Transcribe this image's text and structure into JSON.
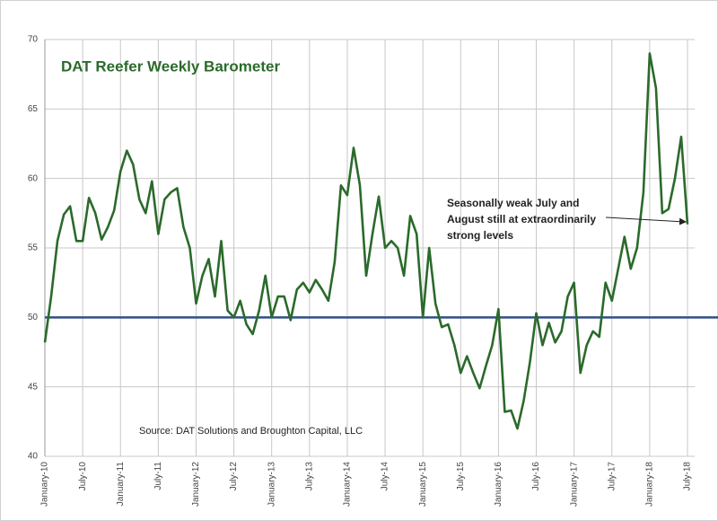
{
  "chart_data": {
    "type": "line",
    "title": "DAT Reefer Weekly Barometer",
    "source": "Source: DAT Solutions and Broughton Capital, LLC",
    "annotation": [
      "Seasonally weak July and",
      "August still at extraordinarily",
      "strong levels"
    ],
    "categories": [
      "January-10",
      null,
      null,
      null,
      null,
      null,
      "July-10",
      null,
      null,
      null,
      null,
      null,
      "January-11",
      null,
      null,
      null,
      null,
      null,
      "July-11",
      null,
      null,
      null,
      null,
      null,
      "January-12",
      null,
      null,
      null,
      null,
      null,
      "July-12",
      null,
      null,
      null,
      null,
      null,
      "January-13",
      null,
      null,
      null,
      null,
      null,
      "July-13",
      null,
      null,
      null,
      null,
      null,
      "January-14",
      null,
      null,
      null,
      null,
      null,
      "July-14",
      null,
      null,
      null,
      null,
      null,
      "January-15",
      null,
      null,
      null,
      null,
      null,
      "July-15",
      null,
      null,
      null,
      null,
      null,
      "January-16",
      null,
      null,
      null,
      null,
      null,
      "July-16",
      null,
      null,
      null,
      null,
      null,
      "January-17",
      null,
      null,
      null,
      null,
      null,
      "July-17",
      null,
      null,
      null,
      null,
      null,
      "January-18",
      null,
      null,
      null,
      null,
      null,
      "July-18"
    ],
    "series": [
      {
        "color": "#2b6a2b",
        "values": [
          48.2,
          51.5,
          55.5,
          57.4,
          58,
          55.5,
          55.5,
          58.6,
          57.5,
          55.6,
          56.5,
          57.7,
          60.5,
          62,
          61,
          58.5,
          57.5,
          59.8,
          56,
          58.5,
          59,
          59.3,
          56.5,
          55,
          51,
          53,
          54.2,
          51.5,
          55.5,
          50.5,
          50,
          51.2,
          49.5,
          48.8,
          50.5,
          53,
          50,
          51.5,
          51.5,
          49.8,
          52,
          52.5,
          51.8,
          52.7,
          52,
          51.2,
          54,
          59.5,
          58.8,
          62.2,
          59.5,
          53,
          56,
          58.7,
          55,
          55.5,
          55,
          53,
          57.3,
          56,
          50,
          55,
          51,
          49.3,
          49.5,
          48,
          46,
          47.2,
          46,
          44.9,
          46.5,
          48,
          50.6,
          43.2,
          43.3,
          42,
          44,
          46.8,
          50.3,
          48,
          49.6,
          48.2,
          49,
          51.5,
          52.5,
          46,
          48,
          49,
          48.6,
          52.5,
          51.2,
          53.5,
          55.8,
          53.5,
          55,
          59,
          69,
          66.5,
          57.5,
          57.8,
          60,
          63,
          56.7
        ]
      }
    ],
    "reference_line": {
      "value": 50,
      "color": "#2f4f8a"
    },
    "ylim": [
      40,
      70
    ],
    "yticks": [
      40,
      45,
      50,
      55,
      60,
      65,
      70
    ],
    "grid": true
  }
}
